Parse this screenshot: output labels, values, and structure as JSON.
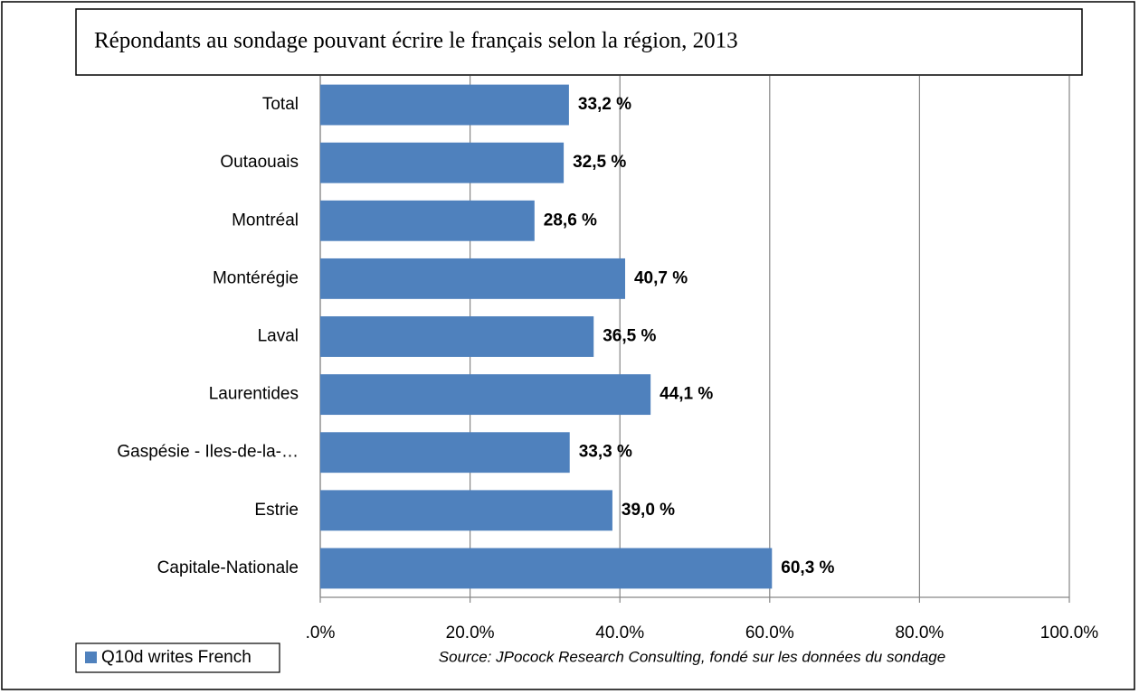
{
  "chart_data": {
    "type": "barh",
    "title": "Répondants au sondage pouvant écrire le français selon la région, 2013",
    "categories": [
      "Total",
      "Outaouais",
      "Montréal",
      "Montérégie",
      "Laval",
      "Laurentides",
      "Gaspésie - Iles-de-la-…",
      "Estrie",
      "Capitale-Nationale"
    ],
    "series": [
      {
        "name": "Q10d writes French",
        "color": "#4f81bd",
        "values": [
          33.2,
          32.5,
          28.6,
          40.7,
          36.5,
          44.1,
          33.3,
          39.0,
          60.3
        ],
        "value_labels": [
          "33,2 %",
          "32,5 %",
          "28,6 %",
          "40,7 %",
          "36,5 %",
          "44,1 %",
          "33,3 %",
          "39,0 %",
          "60,3 %"
        ]
      }
    ],
    "xlim": [
      0,
      100
    ],
    "xticks": [
      {
        "value": 0,
        "label": ".0%"
      },
      {
        "value": 20,
        "label": "20.0%"
      },
      {
        "value": 40,
        "label": "40.0%"
      },
      {
        "value": 60,
        "label": "60.0%"
      },
      {
        "value": 80,
        "label": "80.0%"
      },
      {
        "value": 100,
        "label": "100.0%"
      }
    ],
    "grid": true,
    "legend": "bottom-left",
    "source": "Source:  JPocock Research Consulting, fondé sur les données du sondage"
  }
}
